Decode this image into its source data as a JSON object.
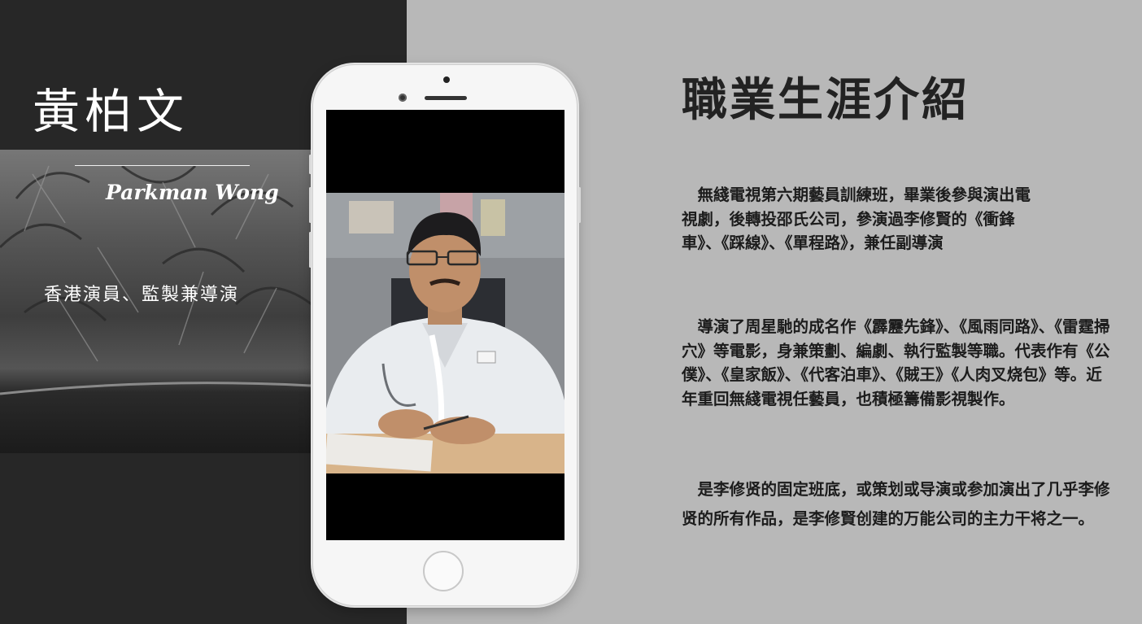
{
  "profile": {
    "chinese_name": "黃柏文",
    "english_name": "Parkman Wong",
    "role": "香港演員、監製兼導演"
  },
  "career": {
    "heading": "職業生涯介紹",
    "paragraphs": [
      "無綫電視第六期藝員訓練班，畢業後參與演出電視劇，後轉投邵氏公司，參演過李修賢的《衝鋒車》、《踩線》、《單程路》，兼任副導演",
      "導演了周星馳的成名作《霹靂先鋒》、《風雨同路》、《雷霆掃穴》等電影，身兼策劃、編劇、執行監製等職。代表作有《公僕》、《皇家飯》、《代客泊車》、《賊王》《人肉叉烧包》等。近年重回無綫電視任藝員，也積極籌備影視製作。",
      "是李修贤的固定班底，或策划或导演或参加演出了几乎李修贤的所有作品，是李修賢创建的万能公司的主力干将之一。"
    ]
  },
  "colors": {
    "left_background": "#272727",
    "right_background": "#b8b8b8",
    "phone_body": "#f6f6f6",
    "heading_text": "#222222"
  }
}
